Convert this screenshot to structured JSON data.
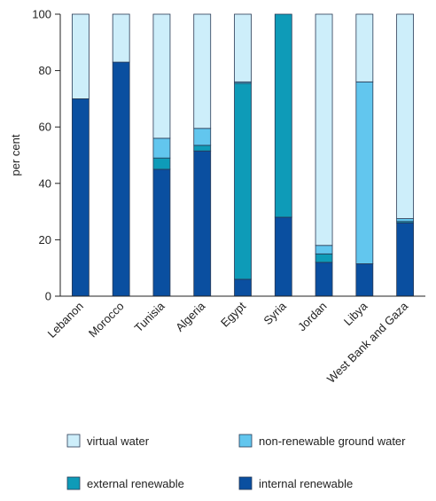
{
  "chart_data": {
    "type": "bar",
    "stacked": true,
    "title": "",
    "xlabel": "",
    "ylabel": "per cent",
    "ylim": [
      0,
      100
    ],
    "yticks": [
      0,
      20,
      40,
      60,
      80,
      100
    ],
    "grid": false,
    "legend_position": "bottom",
    "categories": [
      "Lebanon",
      "Morocco",
      "Tunisia",
      "Algeria",
      "Egypt",
      "Syria",
      "Jordan",
      "Libya",
      "West Bank and Gaza"
    ],
    "series": [
      {
        "name": "internal renewable",
        "color": "#0a4fa0",
        "values": [
          70,
          83,
          45,
          51.5,
          6,
          28,
          12,
          11.5,
          26
        ]
      },
      {
        "name": "external renewable",
        "color": "#0e9bb8",
        "values": [
          0,
          0,
          4,
          2,
          69.5,
          72,
          3,
          0,
          0.5
        ]
      },
      {
        "name": "non-renewable ground water",
        "color": "#62c6ee",
        "values": [
          0,
          0,
          7,
          6,
          0.5,
          0,
          3,
          64.5,
          1
        ]
      },
      {
        "name": "virtual water",
        "color": "#cdeefa",
        "values": [
          30,
          17,
          44,
          40.5,
          24,
          0,
          82,
          24,
          72.5
        ]
      }
    ],
    "legend_order": [
      "virtual water",
      "non-renewable ground water",
      "external renewable",
      "internal renewable"
    ]
  }
}
